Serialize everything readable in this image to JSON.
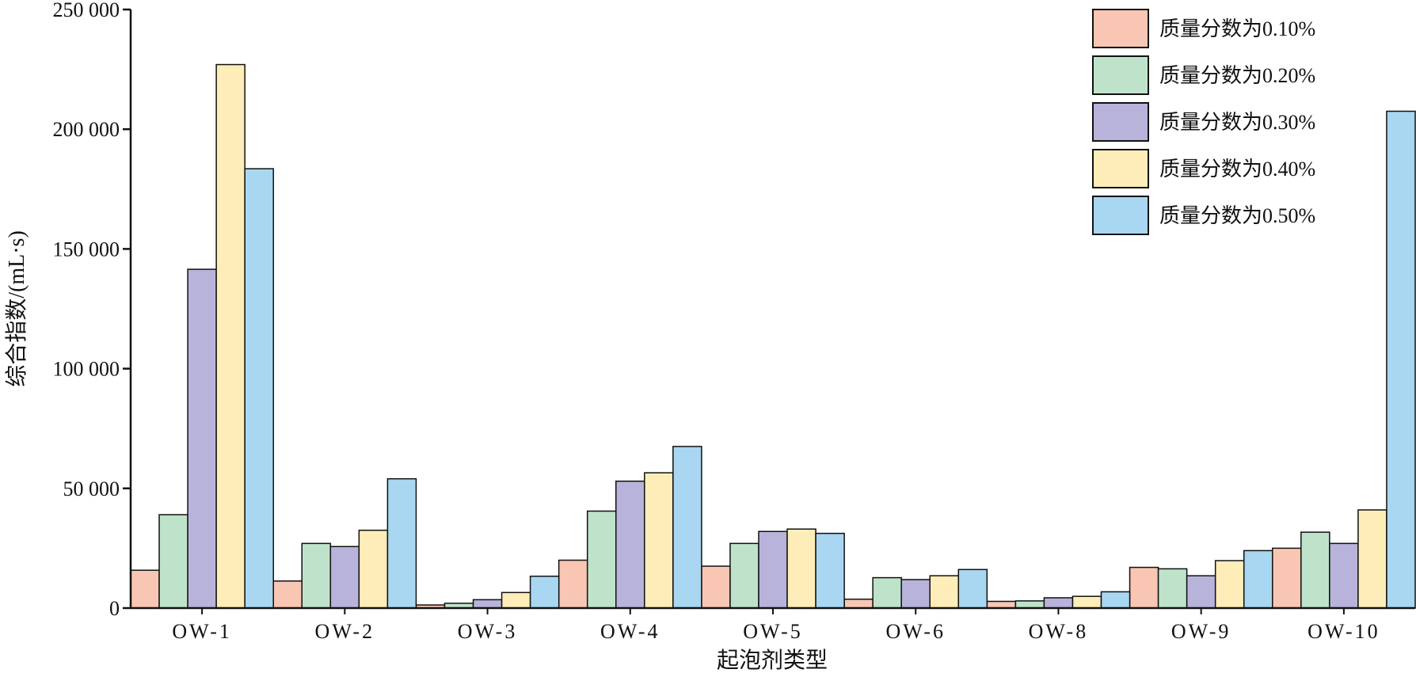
{
  "chart_data": {
    "type": "bar",
    "xlabel": "起泡剂类型",
    "ylabel": "综合指数/(mL·s)",
    "ylim": [
      0,
      250000
    ],
    "yticks": [
      {
        "value": 0,
        "label": "0"
      },
      {
        "value": 50000,
        "label": "50 000"
      },
      {
        "value": 100000,
        "label": "100 000"
      },
      {
        "value": 150000,
        "label": "150 000"
      },
      {
        "value": 200000,
        "label": "200 000"
      },
      {
        "value": 250000,
        "label": "250 000"
      }
    ],
    "categories": [
      "OW-1",
      "OW-2",
      "OW-3",
      "OW-4",
      "OW-5",
      "OW-6",
      "OW-8",
      "OW-9",
      "OW-10"
    ],
    "series": [
      {
        "name": "质量分数为0.10%",
        "color": "#F8C6B3",
        "values": [
          15800,
          11300,
          1300,
          20000,
          17500,
          3700,
          2800,
          17000,
          25000
        ]
      },
      {
        "name": "质量分数为0.20%",
        "color": "#BFE3CA",
        "values": [
          39000,
          27000,
          2000,
          40500,
          27000,
          12700,
          3000,
          16400,
          31700
        ]
      },
      {
        "name": "质量分数为0.30%",
        "color": "#B8B3DA",
        "values": [
          141500,
          25700,
          3500,
          53000,
          32000,
          11900,
          4300,
          13500,
          27000
        ]
      },
      {
        "name": "质量分数为0.40%",
        "color": "#FEEDB8",
        "values": [
          227000,
          32500,
          6500,
          56500,
          33000,
          13500,
          4900,
          19800,
          41000
        ]
      },
      {
        "name": "质量分数为0.50%",
        "color": "#A9D6F0",
        "values": [
          183500,
          54000,
          13300,
          67500,
          31200,
          16100,
          6800,
          24000,
          207500
        ]
      }
    ],
    "legend_position": "top-right",
    "grid": false
  }
}
